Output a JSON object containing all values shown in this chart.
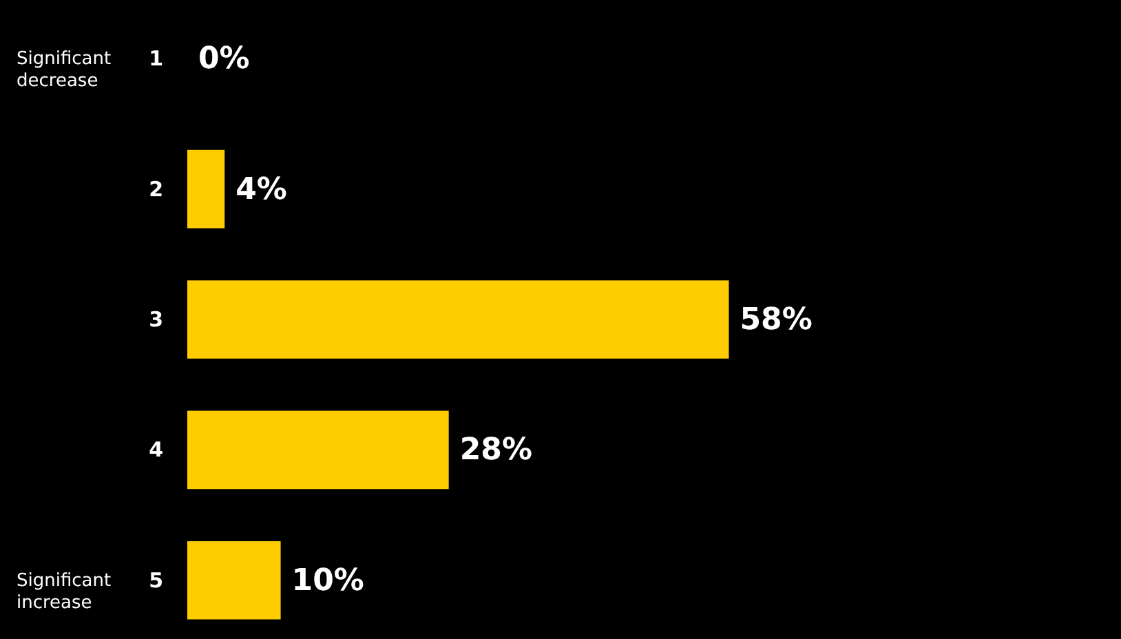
{
  "chart_data": {
    "type": "bar",
    "orientation": "horizontal",
    "categories": [
      "1",
      "2",
      "3",
      "4",
      "5"
    ],
    "values": [
      0,
      4,
      58,
      28,
      10
    ],
    "value_labels": [
      "0%",
      "4%",
      "58%",
      "28%",
      "10%"
    ],
    "color": "#ffcc00",
    "xlim": [
      0,
      100
    ],
    "tick_labels": "y",
    "annotations": [
      "Significant decrease",
      "Significant increase"
    ]
  }
}
